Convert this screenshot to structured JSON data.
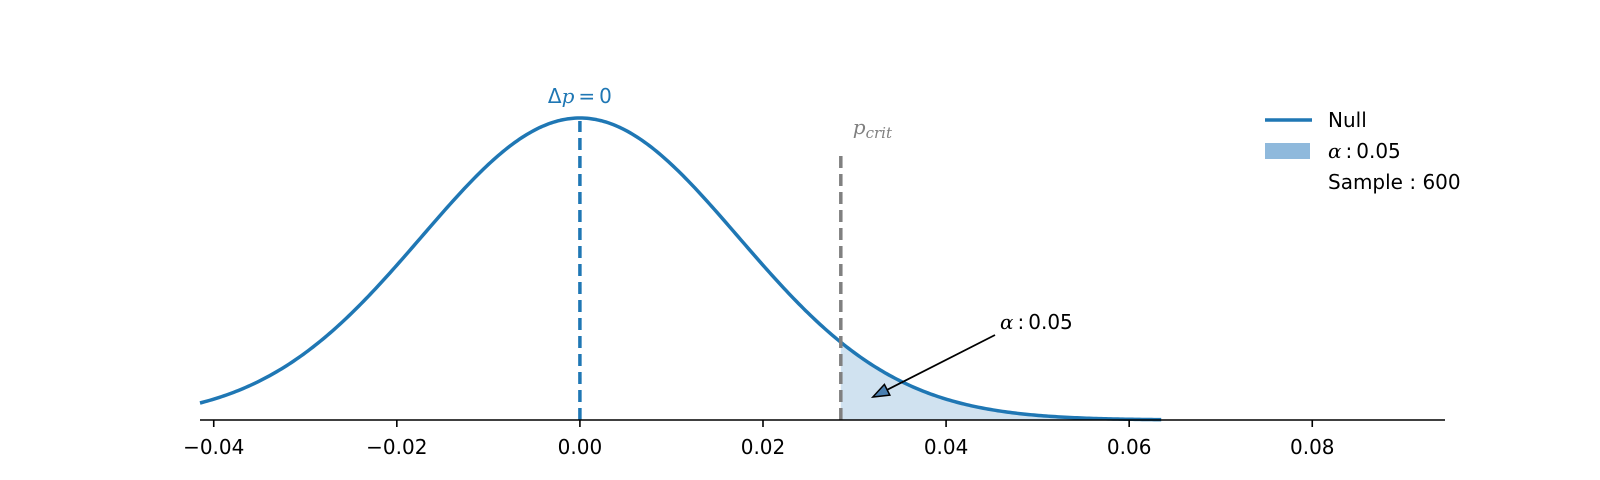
{
  "chart_data": {
    "type": "line",
    "title": "",
    "xlabel": "",
    "ylabel": "",
    "xlim": [
      -0.0415,
      0.0945
    ],
    "x_ticks": [
      -0.04,
      -0.02,
      0.0,
      0.02,
      0.04,
      0.06,
      0.08
    ],
    "x_tick_labels": [
      "−0.04",
      "−0.02",
      "0.00",
      "0.02",
      "0.04",
      "0.06",
      "0.08"
    ],
    "grid": false,
    "legend_position": "top-right",
    "series": [
      {
        "name": "Null",
        "kind": "normal-pdf",
        "mean": 0.0,
        "sd": 0.0173,
        "x_range": [
          -0.0415,
          0.0635
        ],
        "color": "#1f77b4"
      }
    ],
    "shaded_region": {
      "label": "α : 0.05",
      "x_from": 0.0285,
      "x_to": 0.0635,
      "color": "#8fb9dc"
    },
    "reference_lines": [
      {
        "x": 0.0,
        "label": "Δp = 0",
        "color": "#1f77b4",
        "style": "dashed"
      },
      {
        "x": 0.0285,
        "label": "p_crit",
        "color": "#808080",
        "style": "dashed"
      }
    ],
    "annotation": {
      "text": "α : 0.05",
      "points_to_x": 0.032
    },
    "legend": {
      "entries": [
        {
          "label": "Null",
          "swatch": "line",
          "color": "#1f77b4"
        },
        {
          "label": "α : 0.05",
          "swatch": "patch",
          "color": "#8fb9dc"
        },
        {
          "label": "Sample : 600",
          "swatch": "none"
        }
      ]
    }
  }
}
